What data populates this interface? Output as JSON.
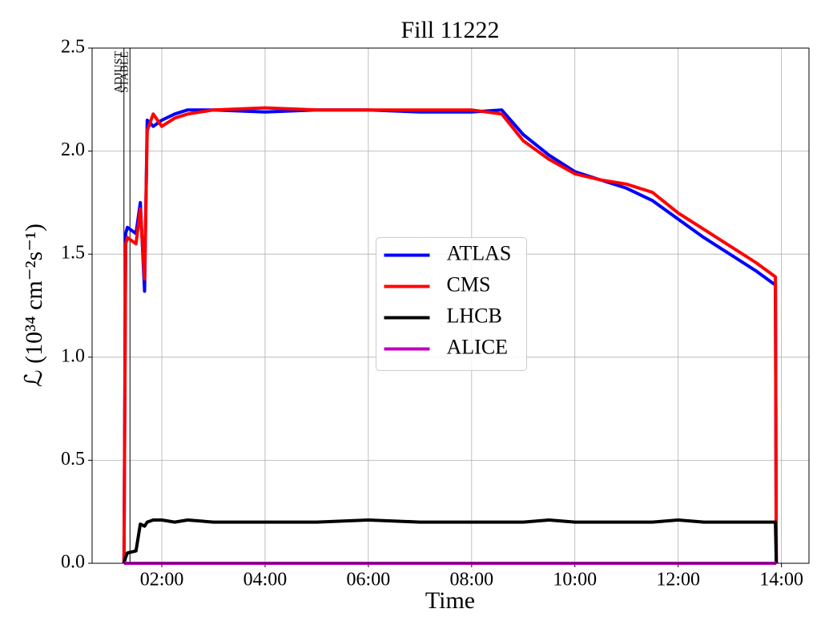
{
  "chart_data": {
    "type": "line",
    "title": "Fill 11222",
    "xlabel": "Time",
    "ylabel": "ℒ (10³⁴ cm⁻²s⁻¹)",
    "xlim": [
      "00:39",
      "14:32"
    ],
    "ylim": [
      0,
      2.5
    ],
    "xticks": [
      "02:00",
      "04:00",
      "06:00",
      "08:00",
      "10:00",
      "12:00",
      "14:00"
    ],
    "yticks": [
      {
        "value": 0,
        "label": "0.0"
      },
      {
        "value": 0.5,
        "label": "0.5"
      },
      {
        "value": 1,
        "label": "1.0"
      },
      {
        "value": 1.5,
        "label": "1.5"
      },
      {
        "value": 2,
        "label": "2.0"
      },
      2.5
    ],
    "grid": true,
    "legend": "center",
    "vlines": [
      {
        "x": "01:16",
        "label": "ADJUST"
      },
      {
        "x": "01:23",
        "label": "STABLE"
      }
    ],
    "x": [
      "01:16",
      "01:18",
      "01:20",
      "01:30",
      "01:35",
      "01:40",
      "01:43",
      "01:50",
      "02:00",
      "02:15",
      "02:30",
      "03:00",
      "04:00",
      "05:00",
      "06:00",
      "07:00",
      "08:00",
      "08:35",
      "09:00",
      "09:30",
      "10:00",
      "10:30",
      "11:00",
      "11:30",
      "12:00",
      "12:30",
      "13:00",
      "13:30",
      "13:53",
      "13:54"
    ],
    "series": [
      {
        "name": "ATLAS",
        "color": "#0000ff",
        "values": [
          0,
          1.6,
          1.63,
          1.6,
          1.75,
          1.32,
          2.15,
          2.12,
          2.15,
          2.18,
          2.2,
          2.2,
          2.19,
          2.2,
          2.2,
          2.19,
          2.19,
          2.2,
          2.08,
          1.98,
          1.9,
          1.86,
          1.82,
          1.76,
          1.67,
          1.58,
          1.5,
          1.42,
          1.35,
          0
        ]
      },
      {
        "name": "CMS",
        "color": "#ff0000",
        "values": [
          0,
          1.55,
          1.58,
          1.55,
          1.72,
          1.38,
          2.1,
          2.18,
          2.12,
          2.16,
          2.18,
          2.2,
          2.21,
          2.2,
          2.2,
          2.2,
          2.2,
          2.18,
          2.05,
          1.96,
          1.89,
          1.86,
          1.84,
          1.8,
          1.7,
          1.62,
          1.54,
          1.46,
          1.39,
          0
        ]
      },
      {
        "name": "LHCB",
        "color": "#000000",
        "values": [
          0,
          0.03,
          0.05,
          0.06,
          0.19,
          0.18,
          0.2,
          0.21,
          0.21,
          0.2,
          0.21,
          0.2,
          0.2,
          0.2,
          0.21,
          0.2,
          0.2,
          0.2,
          0.2,
          0.21,
          0.2,
          0.2,
          0.2,
          0.2,
          0.21,
          0.2,
          0.2,
          0.2,
          0.2,
          0
        ]
      },
      {
        "name": "ALICE",
        "color": "#bf00bf",
        "values": [
          0,
          0,
          0,
          0,
          0,
          0,
          0,
          0,
          0,
          0,
          0,
          0,
          0,
          0,
          0,
          0,
          0,
          0,
          0,
          0,
          0,
          0,
          0,
          0,
          0,
          0,
          0,
          0,
          0,
          0
        ]
      }
    ]
  }
}
